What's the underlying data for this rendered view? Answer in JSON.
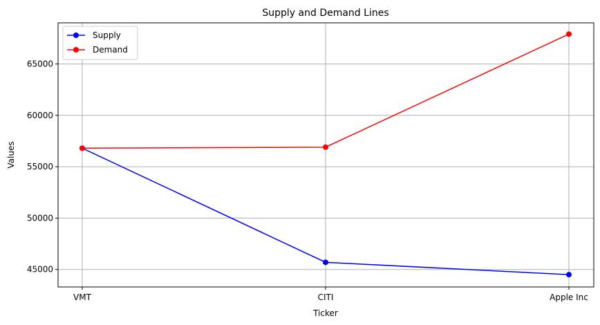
{
  "chart_data": {
    "type": "line",
    "title": "Supply and Demand Lines",
    "xlabel": "Ticker",
    "ylabel": "Values",
    "categories": [
      "VMT",
      "CITI",
      "Apple Inc"
    ],
    "series": [
      {
        "name": "Supply",
        "color": "#0000ff",
        "marker": "circle",
        "values": [
          56800,
          45700,
          44500
        ]
      },
      {
        "name": "Demand",
        "color": "#ff0000",
        "marker": "circle",
        "values": [
          56800,
          56900,
          67900
        ]
      }
    ],
    "ylim": [
      43300,
      69000
    ],
    "yticks": [
      45000,
      50000,
      55000,
      60000,
      65000
    ],
    "grid": true,
    "legend": "top-left"
  }
}
